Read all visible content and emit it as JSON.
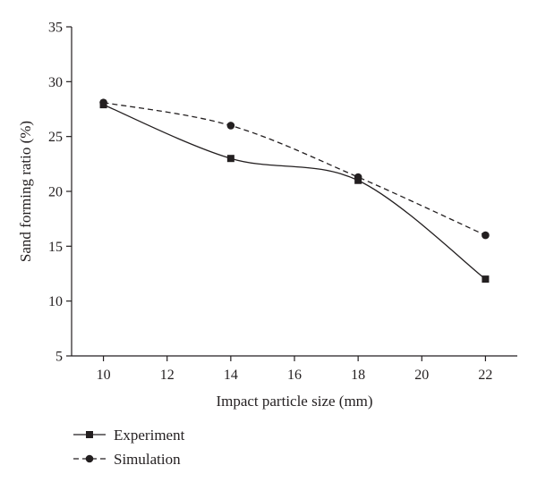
{
  "chart_data": {
    "type": "line",
    "title": "",
    "xlabel": "Impact particle size (mm)",
    "ylabel": "Sand forming ratio (%)",
    "xlim": [
      9,
      23
    ],
    "ylim": [
      5,
      35
    ],
    "xticks": [
      10,
      12,
      14,
      16,
      18,
      20,
      22
    ],
    "yticks": [
      5,
      10,
      15,
      20,
      25,
      30,
      35
    ],
    "grid": false,
    "legend_position": "bottom-left",
    "series": [
      {
        "name": "Experiment",
        "marker": "square",
        "line_style": "solid",
        "color": "#231f20",
        "x": [
          10,
          14,
          18,
          22
        ],
        "y": [
          27.9,
          23.0,
          21.0,
          12.0
        ]
      },
      {
        "name": "Simulation",
        "marker": "circle",
        "line_style": "dashed",
        "color": "#231f20",
        "x": [
          10,
          14,
          18,
          22
        ],
        "y": [
          28.1,
          26.0,
          21.3,
          16.0
        ]
      }
    ]
  }
}
